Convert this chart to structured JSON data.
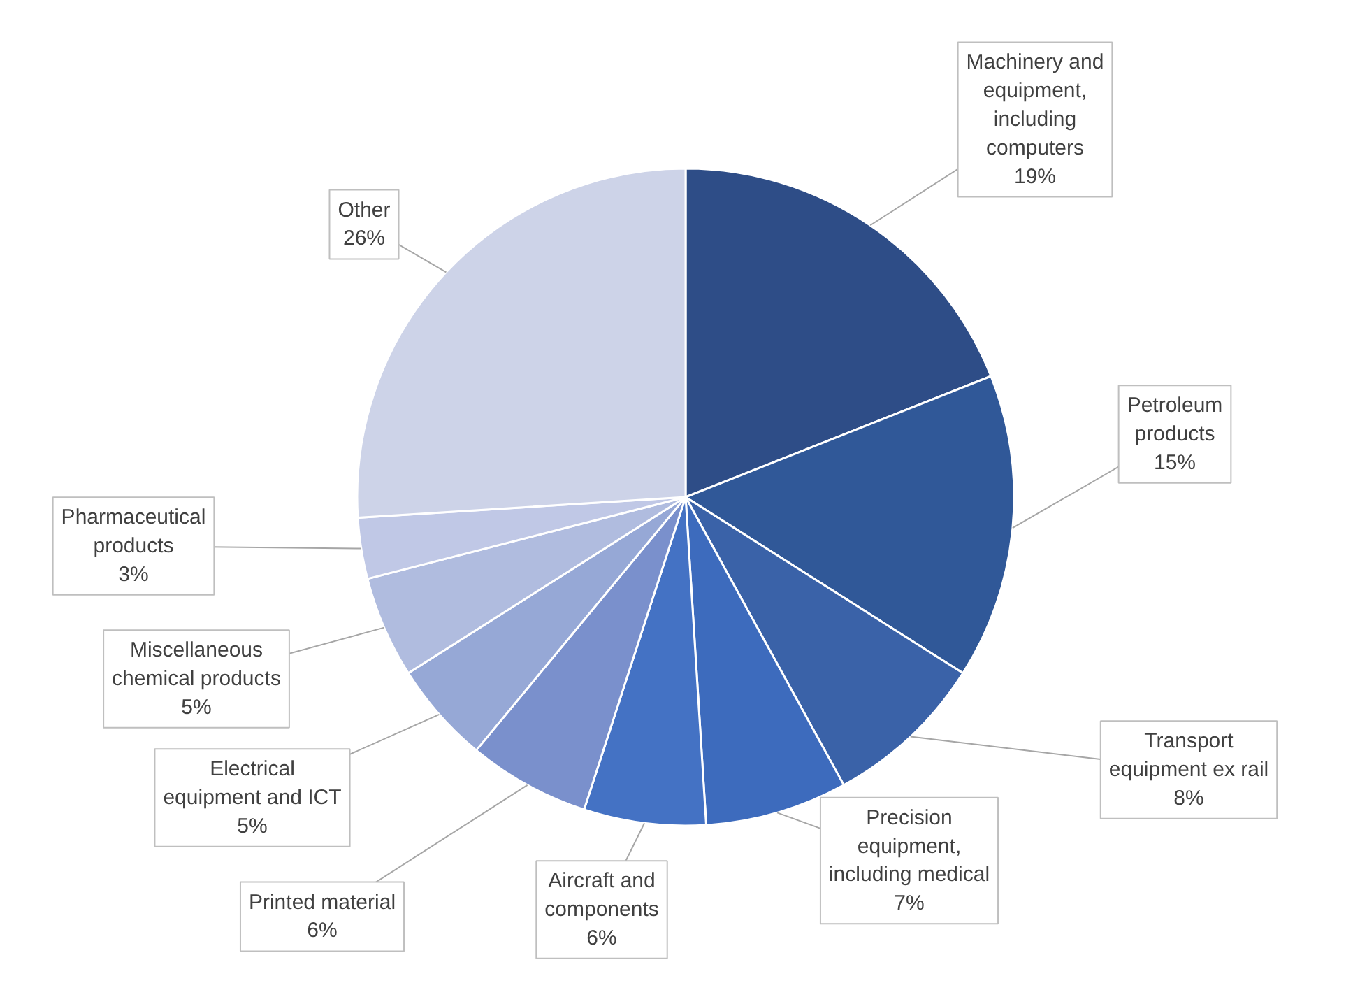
{
  "chart_data": {
    "type": "pie",
    "categories": [
      "Machinery and equipment, including computers",
      "Petroleum products",
      "Transport equipment ex rail",
      "Precision equipment, including medical",
      "Aircraft and components",
      "Printed material",
      "Electrical equipment and ICT",
      "Miscellaneous chemical products",
      "Pharmaceutical products",
      "Other"
    ],
    "values": [
      19,
      15,
      8,
      7,
      6,
      6,
      5,
      5,
      3,
      26
    ],
    "value_labels": [
      "19%",
      "15%",
      "8%",
      "7%",
      "6%",
      "6%",
      "5%",
      "5%",
      "3%",
      "26%"
    ],
    "colors": [
      "#2e4d87",
      "#305898",
      "#3a62a8",
      "#3d6bbd",
      "#4472c4",
      "#7a90cc",
      "#96a8d6",
      "#b0bcdf",
      "#c0c8e6",
      "#cdd3e8"
    ]
  }
}
